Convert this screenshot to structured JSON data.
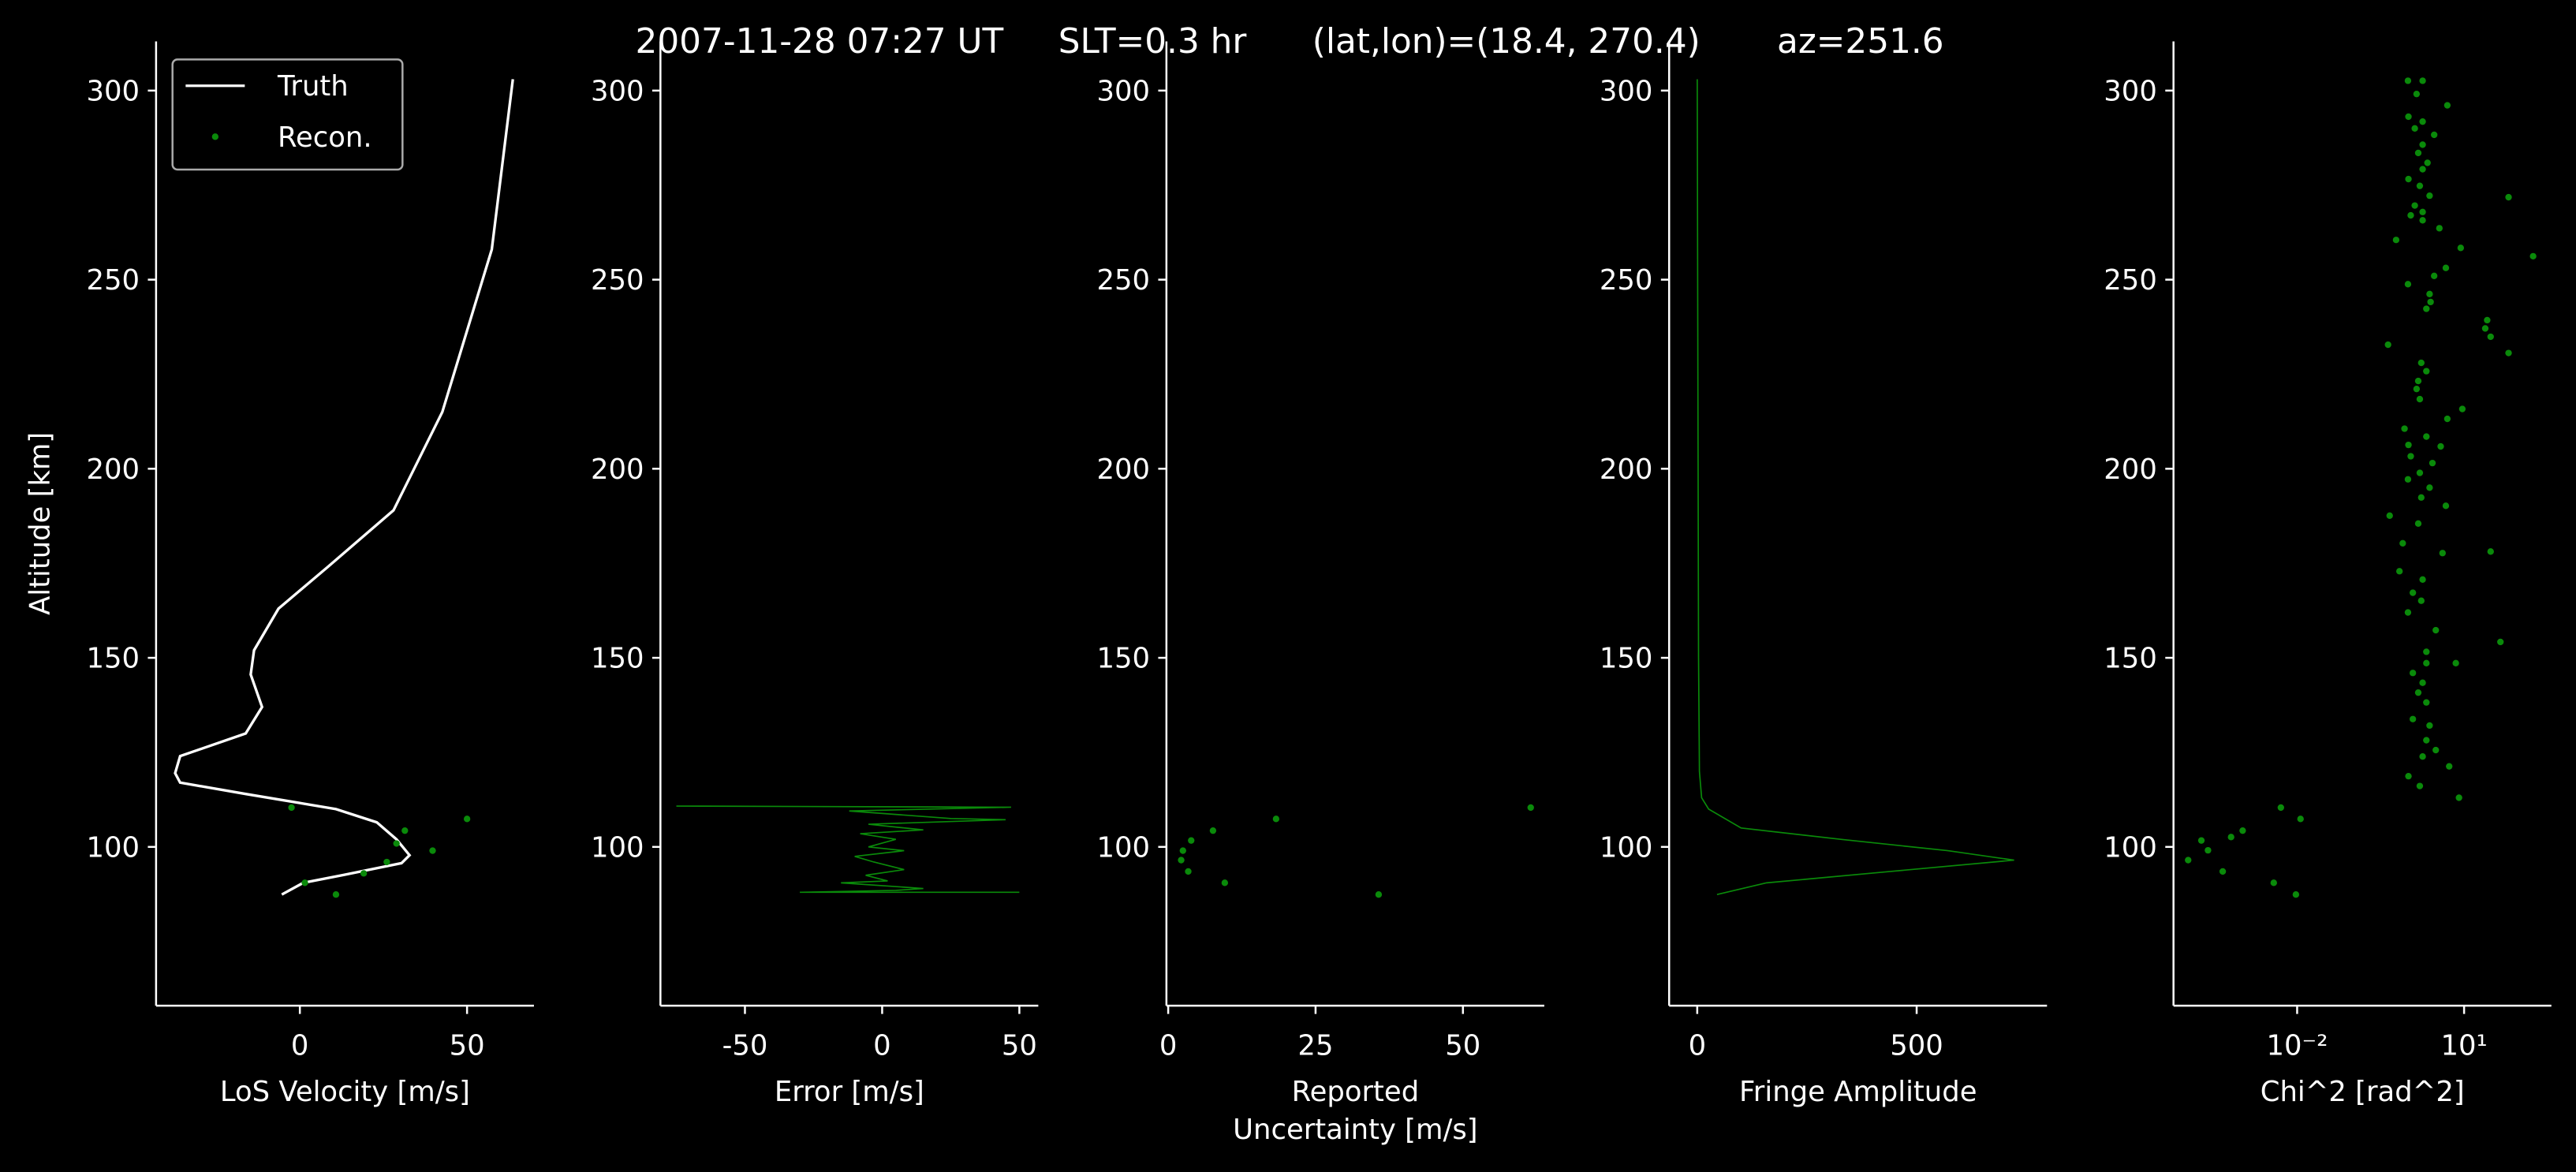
{
  "title": "2007-11-28 07:27 UT     SLT=0.3 hr      (lat,lon)=(18.4, 270.4)       az=251.6",
  "chart_data": [
    {
      "type": "line",
      "ylabel": "Altitude [km]",
      "xlabel": "LoS Velocity [m/s]",
      "xlim": [
        -43,
        70
      ],
      "xticks": [
        0,
        50
      ],
      "ylim": [
        58,
        313
      ],
      "yticks": [
        100,
        150,
        200,
        250,
        300
      ],
      "legend": "upper left",
      "series": [
        {
          "name": "Truth",
          "type": "line",
          "color": "#ffffff",
          "x": [
            63.7,
            57.4,
            42.6,
            28,
            8.3,
            -6.4,
            -13.7,
            -14.7,
            -11.3,
            -16.2,
            -35.8,
            -37.3,
            -35.8,
            -16.2,
            10.8,
            23,
            28.9,
            32.8,
            30.4,
            13.2,
            1,
            -5.4
          ],
          "y": [
            303,
            258,
            215,
            189,
            174,
            163,
            152,
            145.6,
            137,
            130,
            124,
            119.5,
            117,
            114,
            110,
            106.5,
            102,
            97.8,
            95.7,
            92.6,
            90.5,
            87.4
          ]
        },
        {
          "name": "Recon.",
          "type": "scatter",
          "color": "#0a8a0a",
          "x": [
            -2.5,
            31.4,
            50,
            39.7,
            28.9,
            26,
            19.1,
            1.5,
            10.8
          ],
          "y": [
            110.4,
            104.3,
            107.4,
            99,
            100.9,
            96,
            93,
            90.5,
            87.4
          ]
        }
      ]
    },
    {
      "type": "line",
      "xlabel": "Error [m/s]",
      "xlim": [
        -80.8,
        56.9
      ],
      "xticks": [
        -50,
        0,
        50
      ],
      "ylim": [
        58,
        313
      ],
      "yticks": [
        100,
        150,
        200,
        250,
        300
      ],
      "series": [
        {
          "type": "line",
          "color": "#0a8a0a",
          "x": [
            -75,
            47,
            -12,
            25,
            45,
            -5,
            15,
            -8,
            5,
            -5,
            8,
            -10,
            -3,
            8,
            -6,
            2,
            -15,
            15,
            5,
            -30,
            50
          ],
          "y": [
            110.8,
            110.5,
            109.5,
            107.5,
            107.2,
            106,
            104.5,
            103.5,
            102,
            100,
            99,
            97.5,
            96,
            94,
            92.5,
            91,
            90.5,
            89,
            88.5,
            88,
            88
          ]
        }
      ]
    },
    {
      "type": "scatter",
      "xlabel": [
        "Reported",
        "Uncertainty [m/s]"
      ],
      "xlim": [
        -0.3,
        63.8
      ],
      "xticks": [
        0,
        25,
        50
      ],
      "ylim": [
        58,
        313
      ],
      "yticks": [
        100,
        150,
        200,
        250,
        300
      ],
      "series": [
        {
          "type": "scatter",
          "color": "#0a8a0a",
          "x": [
            61.5,
            18.3,
            7.6,
            3.9,
            2.5,
            2.2,
            3.4,
            9.6,
            35.7
          ],
          "y": [
            110.4,
            107.4,
            104.3,
            101.7,
            99,
            96.5,
            93.5,
            90.5,
            87.4
          ]
        }
      ]
    },
    {
      "type": "line",
      "xlabel": "Fringe Amplitude",
      "xlim": [
        -64,
        797
      ],
      "xticks": [
        0,
        500
      ],
      "ylim": [
        58,
        313
      ],
      "yticks": [
        100,
        150,
        200,
        250,
        300
      ],
      "series": [
        {
          "type": "line",
          "color": "#0a8a0a",
          "x": [
            0,
            1,
            2,
            3,
            5,
            10,
            26,
            100,
            327,
            571,
            722,
            440,
            158,
            45
          ],
          "y": [
            303,
            250,
            200,
            150,
            120,
            113,
            110,
            105,
            102,
            99,
            96.5,
            93.5,
            90.5,
            87.4
          ]
        }
      ]
    },
    {
      "type": "scatter",
      "xlabel": "Chi^2 [rad^2]",
      "xscale": "log",
      "xlim": [
        6e-05,
        370
      ],
      "xticks": [
        {
          "value": 0.01,
          "label": "10⁻²"
        },
        {
          "value": 10,
          "label": "10¹"
        }
      ],
      "ylim": [
        58,
        313
      ],
      "yticks": [
        100,
        150,
        200,
        250,
        300
      ],
      "series": [
        {
          "type": "scatter",
          "color": "#0a8a0a",
          "x": [
            0.98,
            1.8,
            1.4,
            5.0,
            1.0,
            1.8,
            1.3,
            2.9,
            1.8,
            1.5,
            2.2,
            1.8,
            1.0,
            1.6,
            2.4,
            63,
            1.3,
            1.8,
            1.1,
            3.6,
            0.6,
            1.8,
            8.7,
            4.7,
            174,
            0.98,
            2.9,
            2.4,
            2.5,
            2.1,
            26,
            24,
            30,
            63,
            0.43,
            1.7,
            2.1,
            1.5,
            1.4,
            1.6,
            9.3,
            5.0,
            0.85,
            2.1,
            1.0,
            3.8,
            1.1,
            2.7,
            1.6,
            0.98,
            2.4,
            1.7,
            4.7,
            0.46,
            1.5,
            0.79,
            4.1,
            30,
            0.69,
            1.8,
            1.2,
            45,
            1.7,
            0.98,
            3.1,
            2.1,
            2.1,
            1.2,
            7.1,
            1.8,
            1.5,
            2.1,
            1.2,
            2.4,
            2.1,
            3.1,
            1.8,
            5.4,
            1.0,
            1.6,
            8.1,
            0.0051,
            0.0115,
            0.00105,
            0.00065,
            0.00019,
            0.00025,
            0.00011,
            0.00046,
            0.0038,
            0.0095
          ],
          "y": [
            302.6,
            302.6,
            299.1,
            296.1,
            293.1,
            291.8,
            290.0,
            288.3,
            285.7,
            283.5,
            280.9,
            279.2,
            276.6,
            274.8,
            272.2,
            271.8,
            269.6,
            267.9,
            267.0,
            263.6,
            260.5,
            265.7,
            258.4,
            253.1,
            256.2,
            248.8,
            251.0,
            246.2,
            244.1,
            242.3,
            239.3,
            237.1,
            234.9,
            230.6,
            232.8,
            228.0,
            225.8,
            223.2,
            221.1,
            218.4,
            215.8,
            213.2,
            210.6,
            208.5,
            206.3,
            205.9,
            203.3,
            201.5,
            198.9,
            197.2,
            195.0,
            192.4,
            190.2,
            187.6,
            185.5,
            180.3,
            177.7,
            178.1,
            172.9,
            170.7,
            167.2,
            154.2,
            165.1,
            162.0,
            157.3,
            151.6,
            148.6,
            146.0,
            148.6,
            143.4,
            140.8,
            138.2,
            133.8,
            132.1,
            128.2,
            125.6,
            123.9,
            121.3,
            118.7,
            116.1,
            113.0,
            110.4,
            107.4,
            104.3,
            102.6,
            101.7,
            99.1,
            96.5,
            93.5,
            90.5,
            87.4
          ]
        }
      ]
    }
  ]
}
